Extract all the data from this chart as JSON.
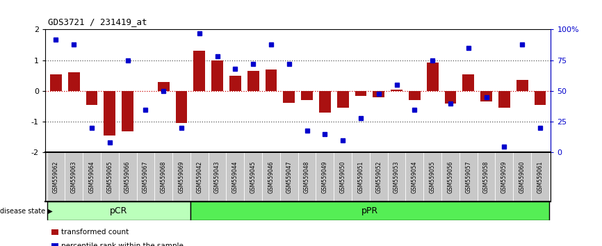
{
  "title": "GDS3721 / 231419_at",
  "samples": [
    "GSM559062",
    "GSM559063",
    "GSM559064",
    "GSM559065",
    "GSM559066",
    "GSM559067",
    "GSM559068",
    "GSM559069",
    "GSM559042",
    "GSM559043",
    "GSM559044",
    "GSM559045",
    "GSM559046",
    "GSM559047",
    "GSM559048",
    "GSM559049",
    "GSM559050",
    "GSM559051",
    "GSM559052",
    "GSM559053",
    "GSM559054",
    "GSM559055",
    "GSM559056",
    "GSM559057",
    "GSM559058",
    "GSM559059",
    "GSM559060",
    "GSM559061"
  ],
  "bar_values": [
    0.55,
    0.6,
    -0.45,
    -1.45,
    -1.3,
    0.0,
    0.3,
    -1.05,
    1.3,
    1.0,
    0.5,
    0.65,
    0.7,
    -0.38,
    -0.3,
    -0.7,
    -0.55,
    -0.15,
    -0.2,
    0.05,
    -0.3,
    0.93,
    -0.4,
    0.55,
    -0.35,
    -0.55,
    0.35,
    -0.45
  ],
  "percentile_values": [
    92,
    88,
    20,
    8,
    75,
    35,
    50,
    20,
    97,
    78,
    68,
    72,
    88,
    72,
    18,
    15,
    10,
    28,
    48,
    55,
    35,
    75,
    40,
    85,
    45,
    5,
    88,
    20
  ],
  "pcr_count": 8,
  "ppr_count": 20,
  "ylim": [
    -2,
    2
  ],
  "yticks": [
    -2,
    -1,
    0,
    1,
    2
  ],
  "right_yticks": [
    0,
    25,
    50,
    75,
    100
  ],
  "right_yticklabels": [
    "0",
    "25",
    "50",
    "75",
    "100%"
  ],
  "bar_color": "#aa1111",
  "percentile_color": "#0000cc",
  "pcr_color": "#bbffbb",
  "ppr_color": "#55ee55",
  "label_bg_color": "#c8c8c8",
  "dotted_line_color": "#555555",
  "zero_line_color": "#cc0000",
  "legend_bar_label": "transformed count",
  "legend_pct_label": "percentile rank within the sample",
  "disease_state_label": "disease state",
  "pcr_label": "pCR",
  "ppr_label": "pPR"
}
